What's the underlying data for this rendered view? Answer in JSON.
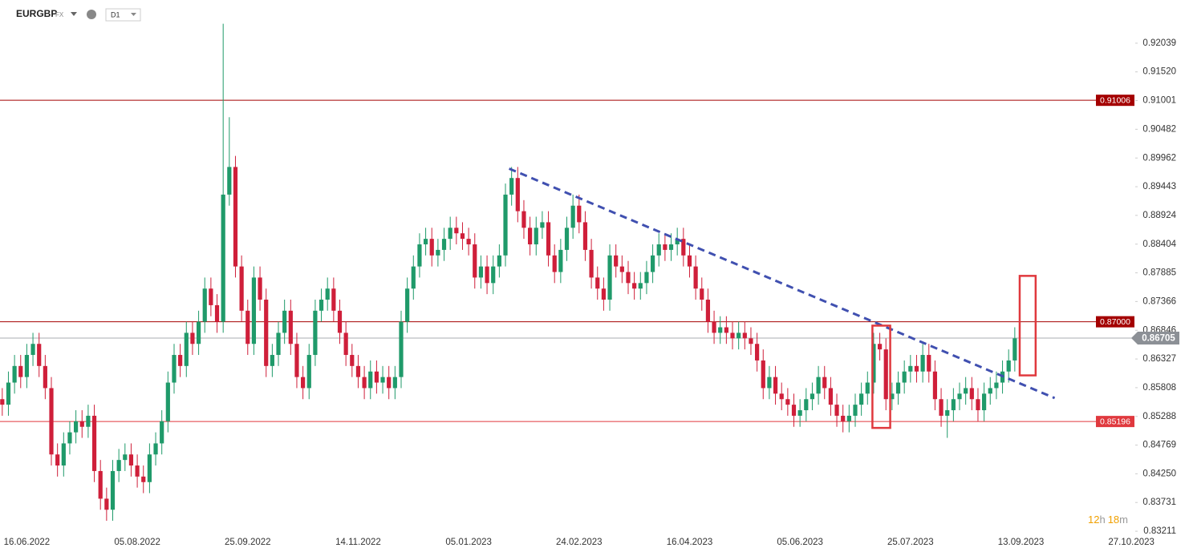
{
  "header": {
    "symbol": "EURGBP",
    "market": "FX",
    "interval": "D1"
  },
  "countdown": {
    "hours": "12",
    "hours_unit": "h",
    "minutes": "18",
    "minutes_unit": "m"
  },
  "chart_data": {
    "type": "candlestick",
    "categories": [
      null,
      null,
      null,
      null,
      "16.06.2022",
      null,
      null,
      null,
      null,
      null,
      null,
      null,
      null,
      null,
      null,
      null,
      null,
      null,
      null,
      null,
      null,
      null,
      "05.08.2022",
      null,
      null,
      null,
      null,
      null,
      null,
      null,
      null,
      null,
      null,
      null,
      null,
      null,
      null,
      null,
      null,
      null,
      "25.09.2022",
      null,
      null,
      null,
      null,
      null,
      null,
      null,
      null,
      null,
      null,
      null,
      null,
      null,
      null,
      null,
      null,
      null,
      "14.11.2022",
      null,
      null,
      null,
      null,
      null,
      null,
      null,
      null,
      null,
      null,
      null,
      null,
      null,
      null,
      null,
      null,
      null,
      "05.01.2023",
      null,
      null,
      null,
      null,
      null,
      null,
      null,
      null,
      null,
      null,
      null,
      null,
      null,
      null,
      null,
      null,
      null,
      "24.02.2023",
      null,
      null,
      null,
      null,
      null,
      null,
      null,
      null,
      null,
      null,
      null,
      null,
      null,
      null,
      null,
      null,
      null,
      "16.04.2023",
      null,
      null,
      null,
      null,
      null,
      null,
      null,
      null,
      null,
      null,
      null,
      null,
      null,
      null,
      null,
      null,
      null,
      "05.06.2023",
      null,
      null,
      null,
      null,
      null,
      null,
      null,
      null,
      null,
      null,
      null,
      null,
      null,
      null,
      null,
      null,
      null,
      "25.07.2023",
      null,
      null,
      null,
      null,
      null,
      null,
      null,
      null,
      null,
      null,
      null,
      null,
      null,
      null,
      null,
      null,
      null,
      "13.09.2023",
      null,
      null,
      null,
      null,
      null,
      null,
      null,
      null,
      null,
      null,
      null,
      null,
      null,
      null,
      null,
      null,
      null,
      "27.10.2023"
    ],
    "open": [
      0.856,
      0.855,
      0.859,
      0.862,
      0.86,
      0.864,
      0.866,
      0.862,
      0.858,
      0.846,
      0.844,
      0.848,
      0.85,
      0.852,
      0.851,
      0.853,
      0.843,
      0.838,
      0.836,
      0.843,
      0.845,
      0.846,
      0.844,
      0.842,
      0.841,
      0.846,
      0.848,
      0.852,
      0.859,
      0.864,
      0.862,
      0.868,
      0.866,
      0.87,
      0.876,
      0.873,
      0.87,
      0.893,
      0.898,
      0.88,
      0.872,
      0.866,
      0.878,
      0.874,
      0.862,
      0.864,
      0.868,
      0.872,
      0.866,
      0.86,
      0.858,
      0.864,
      0.872,
      0.874,
      0.876,
      0.872,
      0.868,
      0.864,
      0.862,
      0.86,
      0.858,
      0.861,
      0.859,
      0.86,
      0.858,
      0.86,
      0.87,
      0.876,
      0.88,
      0.884,
      0.885,
      0.882,
      0.883,
      0.885,
      0.887,
      0.886,
      0.885,
      0.884,
      0.878,
      0.88,
      0.877,
      0.88,
      0.882,
      0.893,
      0.896,
      0.89,
      0.887,
      0.884,
      0.887,
      0.888,
      0.882,
      0.879,
      0.883,
      0.887,
      0.891,
      0.888,
      0.883,
      0.878,
      0.876,
      0.874,
      0.882,
      0.88,
      0.879,
      0.877,
      0.876,
      0.877,
      0.879,
      0.882,
      0.884,
      0.883,
      0.884,
      0.885,
      0.882,
      0.88,
      0.876,
      0.874,
      0.87,
      0.868,
      0.869,
      0.868,
      0.867,
      0.868,
      0.867,
      0.866,
      0.863,
      0.858,
      0.86,
      0.857,
      0.856,
      0.855,
      0.853,
      0.854,
      0.856,
      0.857,
      0.86,
      0.858,
      0.855,
      0.853,
      0.852,
      0.853,
      0.855,
      0.857,
      0.859,
      0.866,
      0.865,
      0.856,
      0.857,
      0.859,
      0.861,
      0.862,
      0.861,
      0.864,
      0.861,
      0.856,
      0.853,
      0.854,
      0.856,
      0.857,
      0.858,
      0.856,
      0.854,
      0.857,
      0.858,
      0.859,
      0.861,
      0.863,
      null,
      null,
      null,
      null,
      null,
      null,
      null,
      null,
      null,
      null,
      null,
      null,
      null,
      null,
      null,
      null,
      null,
      null,
      null
    ],
    "high": [
      0.858,
      0.861,
      0.864,
      0.864,
      0.866,
      0.868,
      0.868,
      0.864,
      0.86,
      0.848,
      0.85,
      0.852,
      0.854,
      0.854,
      0.855,
      0.855,
      0.845,
      0.84,
      0.845,
      0.847,
      0.848,
      0.848,
      0.846,
      0.844,
      0.848,
      0.85,
      0.854,
      0.861,
      0.866,
      0.866,
      0.87,
      0.87,
      0.872,
      0.878,
      0.878,
      0.875,
      0.9239,
      0.907,
      0.9,
      0.882,
      0.874,
      0.88,
      0.88,
      0.876,
      0.866,
      0.87,
      0.874,
      0.874,
      0.868,
      0.862,
      0.866,
      0.874,
      0.876,
      0.878,
      0.878,
      0.874,
      0.87,
      0.866,
      0.864,
      0.862,
      0.863,
      0.863,
      0.862,
      0.862,
      0.862,
      0.872,
      0.878,
      0.882,
      0.886,
      0.887,
      0.887,
      0.885,
      0.887,
      0.889,
      0.889,
      0.888,
      0.887,
      0.886,
      0.882,
      0.882,
      0.882,
      0.884,
      0.895,
      0.898,
      0.898,
      0.892,
      0.889,
      0.889,
      0.89,
      0.89,
      0.884,
      0.885,
      0.889,
      0.893,
      0.893,
      0.89,
      0.885,
      0.88,
      0.878,
      0.884,
      0.884,
      0.882,
      0.881,
      0.879,
      0.879,
      0.881,
      0.884,
      0.886,
      0.886,
      0.886,
      0.887,
      0.887,
      0.884,
      0.882,
      0.878,
      0.876,
      0.872,
      0.871,
      0.871,
      0.87,
      0.87,
      0.87,
      0.869,
      0.868,
      0.865,
      0.862,
      0.862,
      0.859,
      0.858,
      0.857,
      0.856,
      0.858,
      0.859,
      0.862,
      0.862,
      0.86,
      0.857,
      0.855,
      0.855,
      0.857,
      0.859,
      0.861,
      0.868,
      0.868,
      0.867,
      0.859,
      0.861,
      0.863,
      0.864,
      0.864,
      0.866,
      0.866,
      0.863,
      0.858,
      0.856,
      0.858,
      0.859,
      0.86,
      0.86,
      0.858,
      0.859,
      0.86,
      0.861,
      0.863,
      0.865,
      0.869,
      null,
      null,
      null,
      null,
      null,
      null,
      null,
      null,
      null,
      null,
      null,
      null,
      null,
      null,
      null,
      null,
      null,
      null,
      null
    ],
    "low": [
      0.853,
      0.853,
      0.857,
      0.858,
      0.858,
      0.862,
      0.86,
      0.856,
      0.844,
      0.842,
      0.842,
      0.846,
      0.848,
      0.849,
      0.849,
      0.841,
      0.836,
      0.834,
      0.834,
      0.841,
      0.843,
      0.842,
      0.84,
      0.839,
      0.839,
      0.844,
      0.846,
      0.85,
      0.857,
      0.86,
      0.86,
      0.864,
      0.864,
      0.868,
      0.871,
      0.868,
      0.868,
      0.891,
      0.878,
      0.87,
      0.864,
      0.864,
      0.872,
      0.86,
      0.86,
      0.862,
      0.866,
      0.864,
      0.858,
      0.856,
      0.856,
      0.862,
      0.87,
      0.872,
      0.87,
      0.866,
      0.862,
      0.86,
      0.858,
      0.856,
      0.856,
      0.857,
      0.857,
      0.856,
      0.856,
      0.858,
      0.868,
      0.874,
      0.878,
      0.882,
      0.88,
      0.88,
      0.881,
      0.883,
      0.884,
      0.883,
      0.882,
      0.876,
      0.876,
      0.875,
      0.875,
      0.878,
      0.88,
      0.891,
      0.888,
      0.885,
      0.882,
      0.882,
      0.885,
      0.88,
      0.877,
      0.877,
      0.881,
      0.885,
      0.886,
      0.881,
      0.876,
      0.874,
      0.872,
      0.872,
      0.878,
      0.877,
      0.875,
      0.874,
      0.874,
      0.875,
      0.877,
      0.88,
      0.881,
      0.881,
      0.882,
      0.88,
      0.878,
      0.874,
      0.872,
      0.868,
      0.866,
      0.866,
      0.866,
      0.865,
      0.865,
      0.865,
      0.864,
      0.861,
      0.856,
      0.856,
      0.855,
      0.854,
      0.853,
      0.851,
      0.851,
      0.852,
      0.854,
      0.855,
      0.856,
      0.853,
      0.851,
      0.85,
      0.85,
      0.851,
      0.853,
      0.855,
      0.857,
      0.863,
      0.854,
      0.854,
      0.855,
      0.857,
      0.859,
      0.859,
      0.859,
      0.859,
      0.854,
      0.851,
      0.849,
      0.852,
      0.854,
      0.855,
      0.854,
      0.852,
      0.852,
      0.855,
      0.856,
      0.857,
      0.859,
      0.861,
      null,
      null,
      null,
      null,
      null,
      null,
      null,
      null,
      null,
      null,
      null,
      null,
      null,
      null,
      null,
      null,
      null,
      null,
      null
    ],
    "close": [
      0.855,
      0.859,
      0.862,
      0.86,
      0.864,
      0.866,
      0.862,
      0.858,
      0.846,
      0.844,
      0.848,
      0.85,
      0.852,
      0.851,
      0.853,
      0.843,
      0.838,
      0.836,
      0.843,
      0.845,
      0.846,
      0.844,
      0.842,
      0.841,
      0.846,
      0.848,
      0.852,
      0.859,
      0.864,
      0.862,
      0.868,
      0.866,
      0.87,
      0.876,
      0.873,
      0.87,
      0.893,
      0.898,
      0.88,
      0.872,
      0.866,
      0.878,
      0.874,
      0.862,
      0.864,
      0.868,
      0.872,
      0.866,
      0.86,
      0.858,
      0.864,
      0.872,
      0.874,
      0.876,
      0.872,
      0.868,
      0.864,
      0.862,
      0.86,
      0.858,
      0.861,
      0.859,
      0.86,
      0.858,
      0.86,
      0.87,
      0.876,
      0.88,
      0.884,
      0.885,
      0.882,
      0.883,
      0.885,
      0.887,
      0.886,
      0.885,
      0.884,
      0.878,
      0.88,
      0.877,
      0.88,
      0.882,
      0.893,
      0.896,
      0.89,
      0.887,
      0.884,
      0.887,
      0.888,
      0.882,
      0.879,
      0.883,
      0.887,
      0.891,
      0.888,
      0.883,
      0.878,
      0.876,
      0.874,
      0.882,
      0.88,
      0.879,
      0.877,
      0.876,
      0.877,
      0.879,
      0.882,
      0.884,
      0.883,
      0.884,
      0.885,
      0.882,
      0.88,
      0.876,
      0.874,
      0.87,
      0.868,
      0.869,
      0.868,
      0.867,
      0.868,
      0.867,
      0.866,
      0.863,
      0.858,
      0.86,
      0.857,
      0.856,
      0.855,
      0.853,
      0.854,
      0.856,
      0.857,
      0.86,
      0.858,
      0.855,
      0.853,
      0.852,
      0.853,
      0.855,
      0.857,
      0.859,
      0.866,
      0.865,
      0.856,
      0.857,
      0.859,
      0.861,
      0.862,
      0.861,
      0.864,
      0.861,
      0.856,
      0.853,
      0.854,
      0.856,
      0.857,
      0.858,
      0.856,
      0.854,
      0.857,
      0.858,
      0.859,
      0.861,
      0.863,
      0.867,
      null,
      null,
      null,
      null,
      null,
      null,
      null,
      null,
      null,
      null,
      null,
      null,
      null,
      null,
      null,
      null,
      null,
      null,
      null
    ],
    "up_color": "#1f9a6a",
    "down_color": "#cf1f3a",
    "ylim": [
      0.8314,
      0.9282
    ],
    "yticks": [
      0.92039,
      {
        "value": 0.9152,
        "label": "0.91520"
      },
      0.91001,
      0.90482,
      0.89962,
      0.89443,
      0.88924,
      0.88404,
      0.87885,
      0.87366,
      0.86846,
      0.86327,
      0.85808,
      0.85288,
      0.84769,
      {
        "value": 0.8425,
        "label": "0.84250"
      },
      0.83731,
      0.83211
    ],
    "grid": false,
    "levels": [
      {
        "value": 0.91006,
        "color": "#a40000"
      },
      {
        "value": 0.87,
        "label": "0.87000",
        "color": "#a40000"
      },
      {
        "value": 0.85196,
        "color": "#e0393e"
      }
    ],
    "last_price": {
      "value": 0.86705,
      "color": "#8c9096"
    },
    "trendline": {
      "x": [
        82.6,
        171.5
      ],
      "y": [
        0.8977,
        0.8562
      ],
      "color": "#4050b0"
    },
    "boxes": [
      {
        "x": [
          141.8,
          144.7
        ],
        "y": [
          0.8508,
          0.8693
        ],
        "color": "#e0393e"
      },
      {
        "x": [
          165.8,
          168.4
        ],
        "y": [
          0.8603,
          0.8783
        ],
        "color": "#e0393e"
      }
    ]
  }
}
